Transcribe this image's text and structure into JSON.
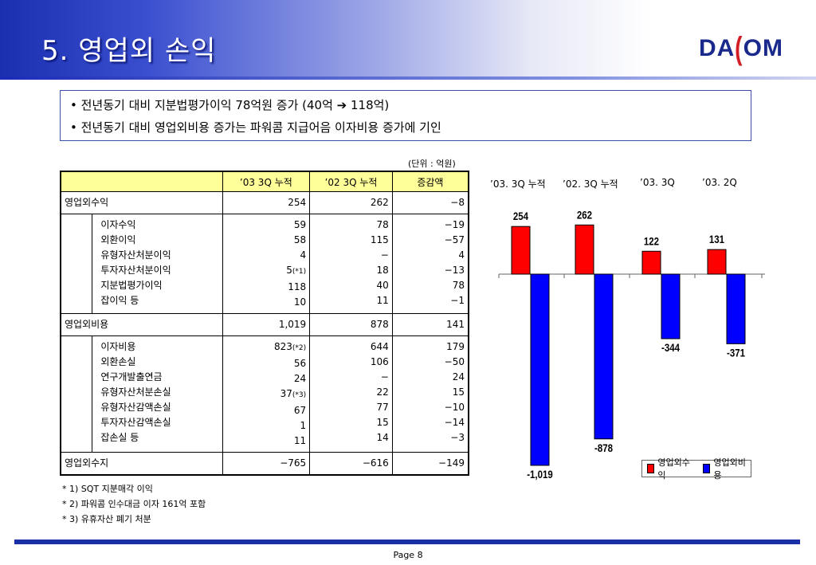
{
  "title": "5. 영업외 손익",
  "logo": {
    "left": "DA",
    "paren": "(",
    "right": "OM"
  },
  "summary": [
    "• 전년동기 대비 지분법평가이익 78억원 증가 (40억 ➔ 118억)",
    "• 전년동기 대비 영업외비용 증가는 파워콤 지급어음 이자비용 증가에 기인"
  ],
  "unit": "(단위 : 억원)",
  "table": {
    "headers": [
      "",
      "’03 3Q 누적",
      "’02 3Q 누적",
      "증감액"
    ],
    "income": {
      "label": "영업외수익",
      "v1": "254",
      "v2": "262",
      "v3": "−8",
      "items": [
        {
          "label": "이자수익",
          "v1": "59",
          "v2": "78",
          "v3": "−19"
        },
        {
          "label": "외환이익",
          "v1": "58",
          "v2": "115",
          "v3": "−57"
        },
        {
          "label": "유형자산처분이익",
          "v1": "4",
          "v2": "−",
          "v3": "4"
        },
        {
          "label": "투자자산처분이익",
          "v1": "5",
          "v1note": "(*1)",
          "v2": "18",
          "v3": "−13"
        },
        {
          "label": "지분법평가이익",
          "v1": "118",
          "v2": "40",
          "v3": "78"
        },
        {
          "label": "잡이익 등",
          "v1": "10",
          "v2": "11",
          "v3": "−1"
        }
      ]
    },
    "expense": {
      "label": "영업외비용",
      "v1": "1,019",
      "v2": "878",
      "v3": "141",
      "items": [
        {
          "label": "이자비용",
          "v1": "823",
          "v1note": "(*2)",
          "v2": "644",
          "v3": "179"
        },
        {
          "label": "외환손실",
          "v1": "56",
          "v2": "106",
          "v3": "−50"
        },
        {
          "label": "연구개발출연금",
          "v1": "24",
          "v2": "−",
          "v3": "24"
        },
        {
          "label": "유형자산처분손실",
          "v1": "37",
          "v1note": "(*3)",
          "v2": "22",
          "v3": "15"
        },
        {
          "label": "유형자산감액손실",
          "v1": "67",
          "v2": "77",
          "v3": "−10"
        },
        {
          "label": "투자자산감액손실",
          "v1": "1",
          "v2": "15",
          "v3": "−14"
        },
        {
          "label": "잡손실 등",
          "v1": "11",
          "v2": "14",
          "v3": "−3"
        }
      ]
    },
    "net": {
      "label": "영업외수지",
      "v1": "−765",
      "v2": "−616",
      "v3": "−149"
    }
  },
  "notes": [
    "* 1) SQT 지분매각 이익",
    "* 2) 파워콤 인수대금 이자 161억 포함",
    "* 3) 유휴자산 폐기 처분"
  ],
  "page": "Page 8",
  "chart_data": {
    "type": "bar",
    "categories": [
      "’03. 3Q 누적",
      "’02. 3Q 누적",
      "’03. 3Q",
      "’03. 2Q"
    ],
    "series": [
      {
        "name": "영업외수익",
        "values": [
          254,
          262,
          122,
          131
        ],
        "color": "#ff0000"
      },
      {
        "name": "영업외비용",
        "values": [
          -1019,
          -878,
          -344,
          -371
        ],
        "color": "#0000ff"
      }
    ],
    "value_labels": {
      "영업외수익": [
        "254",
        "262",
        "122",
        "131"
      ],
      "영업외비용": [
        "-1,019",
        "-878",
        "-344",
        "-371"
      ]
    },
    "legend": "bottom-right",
    "grid": false
  }
}
